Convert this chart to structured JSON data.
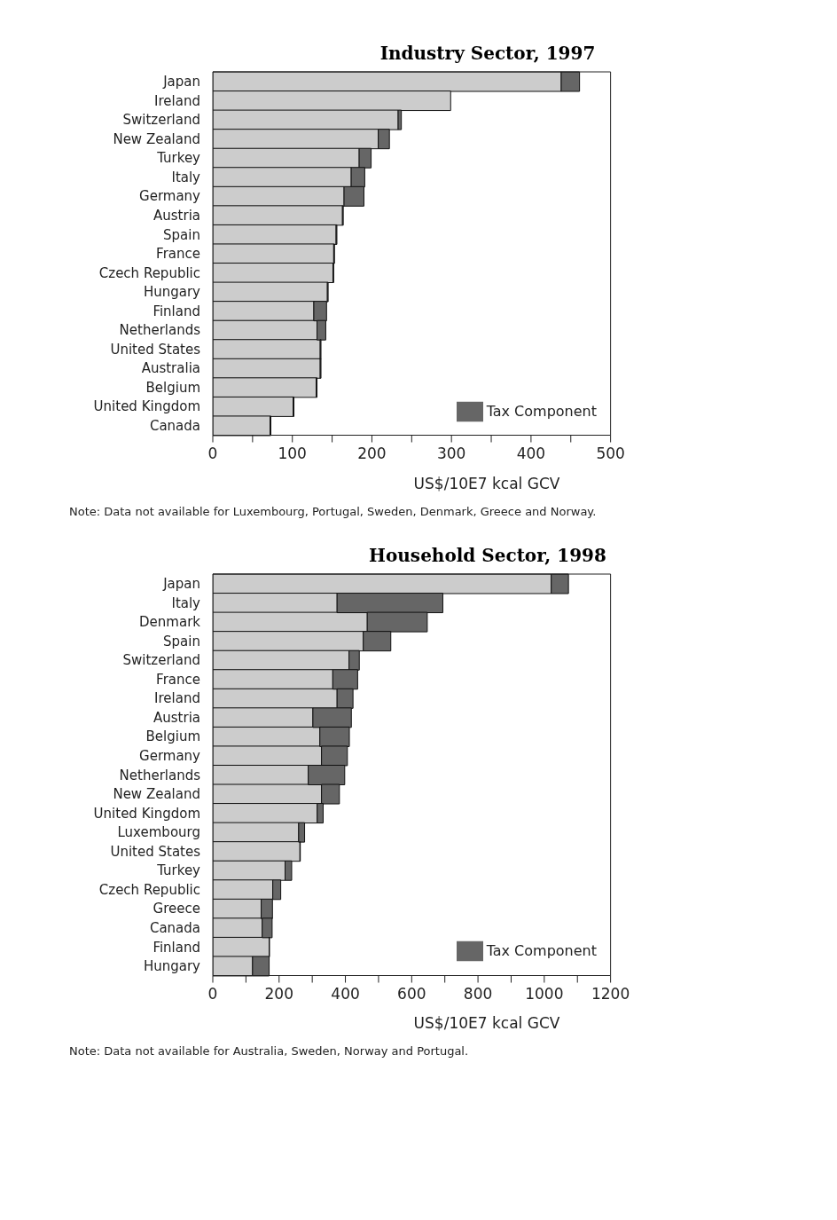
{
  "chart_data": [
    {
      "type": "bar",
      "orientation": "horizontal",
      "stacked": true,
      "title": "Industry Sector, 1997",
      "xlabel": "US$/10E7 kcal GCV",
      "categories": [
        "Japan",
        "Ireland",
        "Switzerland",
        "New Zealand",
        "Turkey",
        "Italy",
        "Germany",
        "Austria",
        "Spain",
        "France",
        "Czech Republic",
        "Hungary",
        "Finland",
        "Netherlands",
        "United States",
        "Australia",
        "Belgium",
        "United Kingdom",
        "Canada"
      ],
      "series": [
        {
          "color": "#cccccc",
          "values": [
            438,
            299,
            233,
            208,
            184,
            174,
            165,
            163,
            155,
            152,
            151,
            144,
            127,
            131,
            135,
            135,
            130,
            101,
            72
          ]
        },
        {
          "name": "Tax Component",
          "color": "#666666",
          "values": [
            23,
            0,
            4,
            14,
            15,
            17,
            25,
            1,
            1,
            1,
            1,
            1,
            16,
            11,
            1,
            1,
            1,
            1,
            1
          ]
        }
      ],
      "xlim": [
        0,
        500
      ],
      "xticks": [
        0,
        {
          "value": 50,
          "label": null
        },
        100,
        {
          "value": 150,
          "label": null
        },
        200,
        {
          "value": 250,
          "label": null
        },
        300,
        {
          "value": 350,
          "label": null
        },
        400,
        {
          "value": 450,
          "label": null
        },
        500
      ],
      "grid": false,
      "legend": "bottom right",
      "annotations": [
        "Note: Data not available for Luxembourg, Portugal, Sweden, Denmark, Greece and Norway."
      ]
    },
    {
      "type": "bar",
      "orientation": "horizontal",
      "stacked": true,
      "title": "Household Sector, 1998",
      "xlabel": "US$/10E7 kcal GCV",
      "categories": [
        "Japan",
        "Italy",
        "Denmark",
        "Spain",
        "Switzerland",
        "France",
        "Ireland",
        "Austria",
        "Belgium",
        "Germany",
        "Netherlands",
        "New Zealand",
        "United Kingdom",
        "Luxembourg",
        "United States",
        "Turkey",
        "Czech Republic",
        "Greece",
        "Canada",
        "Finland",
        "Hungary"
      ],
      "series": [
        {
          "color": "#cccccc",
          "values": [
            1021,
            375,
            466,
            454,
            411,
            362,
            375,
            302,
            323,
            328,
            288,
            328,
            315,
            259,
            263,
            218,
            181,
            146,
            149,
            170,
            120
          ]
        },
        {
          "name": "Tax Component",
          "color": "#666666",
          "values": [
            52,
            319,
            181,
            83,
            31,
            75,
            48,
            116,
            89,
            78,
            110,
            54,
            18,
            18,
            1,
            20,
            24,
            34,
            30,
            1,
            50
          ]
        }
      ],
      "xlim": [
        0,
        1200
      ],
      "xticks": [
        0,
        {
          "value": 100,
          "label": null
        },
        200,
        {
          "value": 300,
          "label": null
        },
        400,
        {
          "value": 500,
          "label": null
        },
        600,
        {
          "value": 700,
          "label": null
        },
        800,
        {
          "value": 900,
          "label": null
        },
        1000,
        {
          "value": 1100,
          "label": null
        },
        1200
      ],
      "grid": false,
      "legend": "bottom right",
      "annotations": [
        "Note: Data not available for Australia, Sweden, Norway and Portugal."
      ]
    }
  ]
}
